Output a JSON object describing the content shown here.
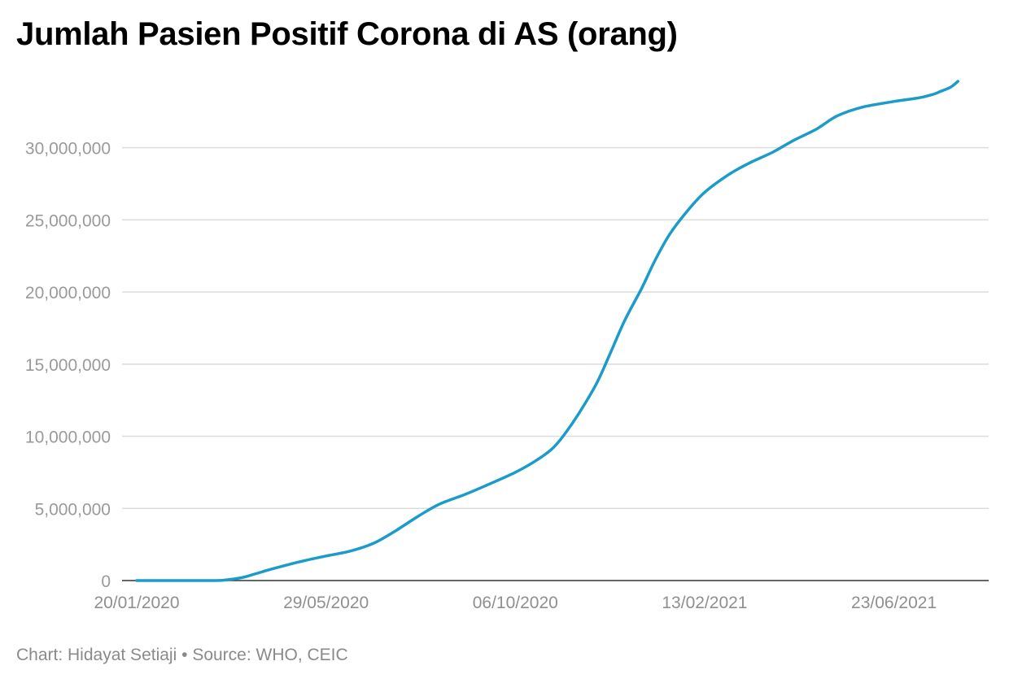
{
  "title": "Jumlah Pasien Positif Corona di AS (orang)",
  "footer": {
    "credit": "Chart: Hidayat Setiaji",
    "separator": "•",
    "source": "Source: WHO, CEIC"
  },
  "colors": {
    "line": "#1b9cc8",
    "grid": "#dcdcdc",
    "axis": "#333333",
    "tick_text": "#9a9a9a"
  },
  "chart_data": {
    "type": "line",
    "title": "Jumlah Pasien Positif Corona di AS (orang)",
    "xlabel": "",
    "ylabel": "",
    "x_type": "date",
    "xlim": [
      "2020-01-20",
      "2021-08-17"
    ],
    "ylim": [
      0,
      34600000
    ],
    "y_ticks": [
      0,
      5000000,
      10000000,
      15000000,
      20000000,
      25000000,
      30000000
    ],
    "y_tick_labels": [
      "0",
      "5,000,000",
      "10,000,000",
      "15,000,000",
      "20,000,000",
      "25,000,000",
      "30,000,000"
    ],
    "x_ticks": [
      "2020-01-20",
      "2020-05-29",
      "2020-10-06",
      "2021-02-13",
      "2021-06-23"
    ],
    "x_tick_labels": [
      "20/01/2020",
      "29/05/2020",
      "06/10/2020",
      "13/02/2021",
      "23/06/2021"
    ],
    "grid": true,
    "legend": "none",
    "series": [
      {
        "x": [
          "2020-01-20",
          "2020-02-15",
          "2020-03-10",
          "2020-03-20",
          "2020-04-01",
          "2020-04-10",
          "2020-04-20",
          "2020-05-01",
          "2020-05-15",
          "2020-05-29",
          "2020-06-15",
          "2020-07-01",
          "2020-07-15",
          "2020-08-01",
          "2020-08-15",
          "2020-09-01",
          "2020-09-15",
          "2020-10-06",
          "2020-10-20",
          "2020-11-01",
          "2020-11-10",
          "2020-11-20",
          "2020-12-01",
          "2020-12-10",
          "2020-12-20",
          "2021-01-01",
          "2021-01-10",
          "2021-01-20",
          "2021-02-01",
          "2021-02-13",
          "2021-03-01",
          "2021-03-15",
          "2021-04-01",
          "2021-04-15",
          "2021-05-01",
          "2021-05-15",
          "2021-06-01",
          "2021-06-23",
          "2021-07-10",
          "2021-07-20",
          "2021-07-25",
          "2021-08-01",
          "2021-08-06"
        ],
        "y": [
          0,
          0,
          0,
          30000,
          200000,
          450000,
          750000,
          1050000,
          1400000,
          1700000,
          2050000,
          2600000,
          3400000,
          4500000,
          5300000,
          5950000,
          6550000,
          7500000,
          8300000,
          9200000,
          10300000,
          11800000,
          13700000,
          15700000,
          18000000,
          20300000,
          22200000,
          24000000,
          25600000,
          26900000,
          28100000,
          28900000,
          29700000,
          30500000,
          31300000,
          32200000,
          32800000,
          33200000,
          33450000,
          33700000,
          33900000,
          34200000,
          34600000
        ]
      }
    ]
  }
}
